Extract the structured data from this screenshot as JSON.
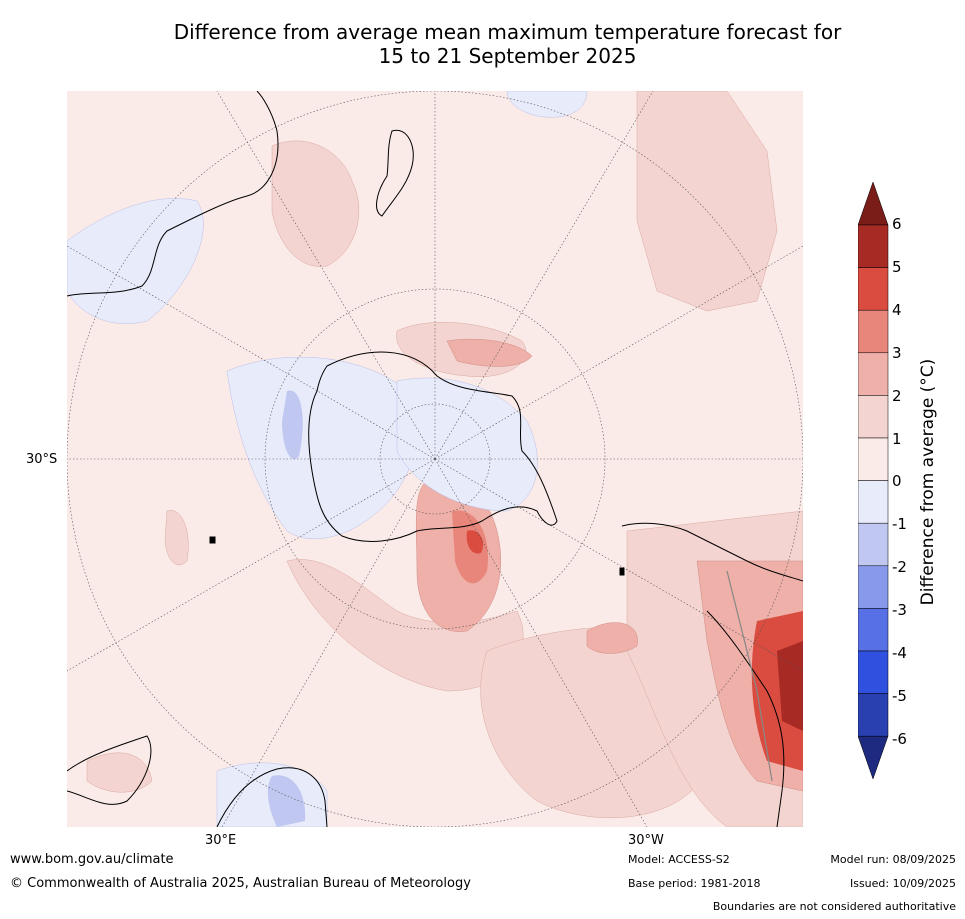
{
  "title": {
    "line1": "Difference from average mean maximum temperature forecast for",
    "line2": "15 to 21 September 2025"
  },
  "map": {
    "projection": "south-polar-stereographic",
    "lat_labels": [
      "30°S"
    ],
    "lon_labels": [
      "30°E",
      "30°W"
    ]
  },
  "colorbar": {
    "title": "Difference from average (°C)",
    "ticks": [
      "6",
      "5",
      "4",
      "3",
      "2",
      "1",
      "0",
      "-1",
      "-2",
      "-3",
      "-4",
      "-5",
      "-6"
    ],
    "colors": {
      "above6": "#7a1c17",
      "c5_6": "#a82a25",
      "c4_5": "#d94c3f",
      "c3_4": "#e8867b",
      "c2_3": "#eeb0a8",
      "c1_2": "#f4d4d0",
      "c0_1": "#fbebe8",
      "cm1_0": "#e8ebfa",
      "cm2_m1": "#c0c8f1",
      "cm3_m2": "#8899ec",
      "cm4_m3": "#5870e6",
      "cm5_m4": "#3050df",
      "cm6_m5": "#2840b0",
      "below_m6": "#1e2a80"
    }
  },
  "footer": {
    "website": "www.bom.gov.au/climate",
    "copyright": "© Commonwealth of Australia 2025, Australian Bureau of Meteorology",
    "model": "Model: ACCESS-S2",
    "base_period": "Base period: 1981-2018",
    "model_run": "Model run: 08/09/2025",
    "issued": "Issued: 10/09/2025",
    "disclaimer": "Boundaries are not considered authoritative"
  }
}
